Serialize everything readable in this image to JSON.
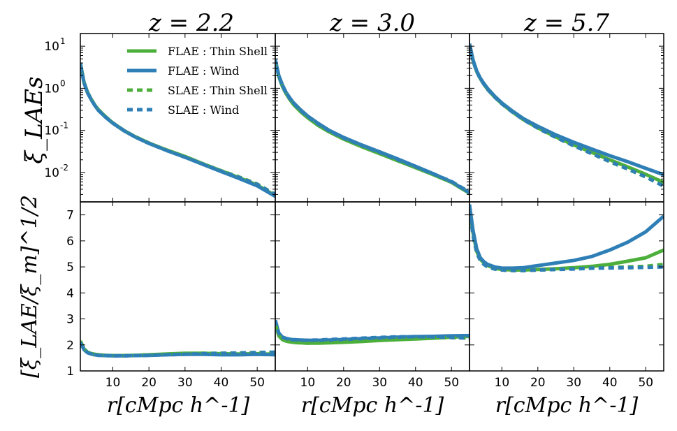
{
  "figure": {
    "panel_titles": [
      "z = 2.2",
      "z = 3.0",
      "z = 5.7"
    ],
    "top_ylabel": "ξ_LAEs",
    "bottom_ylabel": "[ξ_LAE/ξ_m]^1/2",
    "xlabel": "r[cMpc h^-1]",
    "legend": [
      {
        "label": "FLAE : Thin Shell",
        "color": "#4daf3b",
        "style": "solid"
      },
      {
        "label": "FLAE : Wind",
        "color": "#2f7fb7",
        "style": "solid"
      },
      {
        "label": "SLAE : Thin Shell",
        "color": "#4daf3b",
        "style": "dashed"
      },
      {
        "label": "SLAE : Wind",
        "color": "#2f7fb7",
        "style": "dashed"
      }
    ],
    "colors": {
      "thin_shell": "#4daf3b",
      "wind": "#2f7fb7",
      "axis": "#000000"
    }
  },
  "chart_data": [
    {
      "type": "line",
      "title": "z = 2.2",
      "xlabel": "r[cMpc h^-1]",
      "ylabel": "ξ_LAEs",
      "yscale": "log",
      "xlim": [
        1,
        55
      ],
      "ylim": [
        0.002,
        20
      ],
      "xticks": [
        10,
        20,
        30,
        40,
        50
      ],
      "yticks": [
        0.01,
        0.1,
        1,
        10
      ],
      "ytick_labels": [
        "10^-2",
        "10^-1",
        "10^0",
        "10^1"
      ],
      "x": [
        1,
        2,
        3,
        4,
        5,
        6,
        8,
        10,
        13,
        16,
        20,
        25,
        30,
        35,
        40,
        45,
        50,
        55
      ],
      "series": [
        {
          "name": "FLAE : Thin Shell",
          "values": [
            4.0,
            1.4,
            0.8,
            0.55,
            0.4,
            0.31,
            0.21,
            0.15,
            0.1,
            0.072,
            0.05,
            0.034,
            0.024,
            0.016,
            0.011,
            0.0075,
            0.005,
            0.0028
          ]
        },
        {
          "name": "FLAE : Wind",
          "values": [
            3.8,
            1.35,
            0.78,
            0.54,
            0.39,
            0.3,
            0.205,
            0.148,
            0.099,
            0.071,
            0.049,
            0.033,
            0.023,
            0.0155,
            0.0105,
            0.0072,
            0.0048,
            0.0027
          ]
        },
        {
          "name": "SLAE : Thin Shell",
          "values": [
            4.0,
            1.4,
            0.8,
            0.55,
            0.4,
            0.31,
            0.21,
            0.15,
            0.1,
            0.072,
            0.05,
            0.034,
            0.0235,
            0.016,
            0.011,
            0.0078,
            0.0053,
            0.003
          ]
        },
        {
          "name": "SLAE : Wind",
          "values": [
            3.9,
            1.38,
            0.79,
            0.54,
            0.39,
            0.3,
            0.206,
            0.149,
            0.1,
            0.071,
            0.049,
            0.033,
            0.023,
            0.0157,
            0.0108,
            0.0076,
            0.0052,
            0.003
          ]
        }
      ]
    },
    {
      "type": "line",
      "title": "z = 3.0",
      "xlabel": "r[cMpc h^-1]",
      "ylabel": "",
      "yscale": "log",
      "xlim": [
        1,
        55
      ],
      "ylim": [
        0.002,
        20
      ],
      "xticks": [
        10,
        20,
        30,
        40,
        50
      ],
      "x": [
        1,
        2,
        3,
        4,
        5,
        6,
        8,
        10,
        13,
        16,
        20,
        25,
        30,
        35,
        40,
        45,
        50,
        55
      ],
      "series": [
        {
          "name": "FLAE : Thin Shell",
          "values": [
            4.5,
            1.9,
            1.1,
            0.75,
            0.55,
            0.42,
            0.28,
            0.2,
            0.13,
            0.092,
            0.062,
            0.041,
            0.028,
            0.019,
            0.013,
            0.0088,
            0.0058,
            0.0032
          ]
        },
        {
          "name": "FLAE : Wind",
          "values": [
            4.8,
            2.0,
            1.2,
            0.8,
            0.6,
            0.46,
            0.31,
            0.22,
            0.145,
            0.1,
            0.068,
            0.045,
            0.031,
            0.021,
            0.014,
            0.0093,
            0.006,
            0.0033
          ]
        },
        {
          "name": "SLAE : Thin Shell",
          "values": [
            4.5,
            1.9,
            1.1,
            0.76,
            0.56,
            0.43,
            0.285,
            0.205,
            0.133,
            0.094,
            0.063,
            0.042,
            0.029,
            0.0195,
            0.0133,
            0.009,
            0.006,
            0.0034
          ]
        },
        {
          "name": "SLAE : Wind",
          "values": [
            4.7,
            1.95,
            1.15,
            0.78,
            0.58,
            0.45,
            0.3,
            0.215,
            0.14,
            0.098,
            0.066,
            0.044,
            0.03,
            0.0202,
            0.0137,
            0.0092,
            0.0061,
            0.0034
          ]
        }
      ]
    },
    {
      "type": "line",
      "title": "z = 5.7",
      "xlabel": "r[cMpc h^-1]",
      "ylabel": "",
      "yscale": "log",
      "xlim": [
        1,
        55
      ],
      "ylim": [
        0.002,
        20
      ],
      "xticks": [
        10,
        20,
        30,
        40,
        50
      ],
      "x": [
        1,
        2,
        3,
        4,
        5,
        6,
        8,
        10,
        13,
        16,
        20,
        25,
        30,
        35,
        40,
        45,
        50,
        55
      ],
      "series": [
        {
          "name": "FLAE : Thin Shell",
          "values": [
            11,
            4.5,
            2.5,
            1.7,
            1.25,
            0.95,
            0.62,
            0.43,
            0.27,
            0.18,
            0.115,
            0.07,
            0.045,
            0.03,
            0.02,
            0.0135,
            0.009,
            0.0058
          ]
        },
        {
          "name": "FLAE : Wind",
          "values": [
            11.5,
            4.7,
            2.6,
            1.75,
            1.3,
            1.0,
            0.65,
            0.45,
            0.285,
            0.19,
            0.125,
            0.078,
            0.052,
            0.036,
            0.025,
            0.018,
            0.0125,
            0.0088
          ]
        },
        {
          "name": "SLAE : Thin Shell",
          "values": [
            11,
            4.5,
            2.5,
            1.7,
            1.25,
            0.95,
            0.62,
            0.43,
            0.27,
            0.18,
            0.113,
            0.068,
            0.043,
            0.028,
            0.018,
            0.012,
            0.0078,
            0.0048
          ]
        },
        {
          "name": "SLAE : Wind",
          "values": [
            11,
            4.5,
            2.5,
            1.7,
            1.25,
            0.95,
            0.62,
            0.43,
            0.27,
            0.18,
            0.113,
            0.068,
            0.043,
            0.028,
            0.0182,
            0.0121,
            0.0079,
            0.0047
          ]
        }
      ]
    },
    {
      "type": "line",
      "title": "z = 2.2",
      "xlabel": "r[cMpc h^-1]",
      "ylabel": "[ξ_LAE/ξ_m]^1/2",
      "yscale": "linear",
      "xlim": [
        1,
        55
      ],
      "ylim": [
        1,
        7.5
      ],
      "xticks": [
        10,
        20,
        30,
        40,
        50
      ],
      "yticks": [
        1,
        2,
        3,
        4,
        5,
        6,
        7
      ],
      "x": [
        1,
        2,
        3,
        4,
        5,
        6,
        8,
        10,
        13,
        16,
        20,
        25,
        30,
        35,
        40,
        45,
        50,
        55
      ],
      "series": [
        {
          "name": "FLAE : Thin Shell",
          "values": [
            2.15,
            1.85,
            1.72,
            1.67,
            1.64,
            1.62,
            1.6,
            1.59,
            1.59,
            1.6,
            1.62,
            1.65,
            1.68,
            1.68,
            1.66,
            1.65,
            1.66,
            1.64
          ]
        },
        {
          "name": "FLAE : Wind",
          "values": [
            2.1,
            1.82,
            1.7,
            1.65,
            1.62,
            1.6,
            1.59,
            1.58,
            1.58,
            1.59,
            1.6,
            1.62,
            1.64,
            1.64,
            1.62,
            1.62,
            1.64,
            1.62
          ]
        },
        {
          "name": "SLAE : Thin Shell",
          "values": [
            2.15,
            1.85,
            1.72,
            1.67,
            1.64,
            1.62,
            1.6,
            1.59,
            1.59,
            1.6,
            1.62,
            1.64,
            1.67,
            1.68,
            1.68,
            1.69,
            1.71,
            1.72
          ]
        },
        {
          "name": "SLAE : Wind",
          "values": [
            2.1,
            1.82,
            1.7,
            1.65,
            1.62,
            1.6,
            1.59,
            1.58,
            1.58,
            1.59,
            1.6,
            1.62,
            1.64,
            1.66,
            1.68,
            1.69,
            1.7,
            1.72
          ]
        }
      ]
    },
    {
      "type": "line",
      "title": "z = 3.0",
      "xlabel": "r[cMpc h^-1]",
      "ylabel": "",
      "yscale": "linear",
      "xlim": [
        1,
        55
      ],
      "ylim": [
        1,
        7.5
      ],
      "xticks": [
        10,
        20,
        30,
        40,
        50
      ],
      "x": [
        1,
        2,
        3,
        4,
        5,
        6,
        8,
        10,
        13,
        16,
        20,
        25,
        30,
        35,
        40,
        45,
        50,
        55
      ],
      "series": [
        {
          "name": "FLAE : Thin Shell",
          "values": [
            2.8,
            2.35,
            2.2,
            2.15,
            2.12,
            2.1,
            2.08,
            2.07,
            2.07,
            2.08,
            2.1,
            2.13,
            2.17,
            2.2,
            2.23,
            2.26,
            2.3,
            2.33
          ]
        },
        {
          "name": "FLAE : Wind",
          "values": [
            2.95,
            2.45,
            2.3,
            2.25,
            2.22,
            2.2,
            2.19,
            2.18,
            2.18,
            2.19,
            2.21,
            2.24,
            2.27,
            2.3,
            2.32,
            2.33,
            2.35,
            2.36
          ]
        },
        {
          "name": "SLAE : Thin Shell",
          "values": [
            2.8,
            2.35,
            2.2,
            2.15,
            2.12,
            2.1,
            2.08,
            2.07,
            2.08,
            2.1,
            2.12,
            2.15,
            2.19,
            2.22,
            2.25,
            2.27,
            2.28,
            2.26
          ]
        },
        {
          "name": "SLAE : Wind",
          "values": [
            2.95,
            2.45,
            2.3,
            2.25,
            2.22,
            2.2,
            2.19,
            2.18,
            2.19,
            2.21,
            2.23,
            2.26,
            2.29,
            2.31,
            2.32,
            2.31,
            2.29,
            2.26
          ]
        }
      ]
    },
    {
      "type": "line",
      "title": "z = 5.7",
      "xlabel": "r[cMpc h^-1]",
      "ylabel": "",
      "yscale": "linear",
      "xlim": [
        1,
        55
      ],
      "ylim": [
        1,
        7.5
      ],
      "xticks": [
        10,
        20,
        30,
        40,
        50
      ],
      "x": [
        1,
        2,
        3,
        4,
        5,
        6,
        8,
        10,
        13,
        16,
        20,
        25,
        30,
        35,
        40,
        45,
        50,
        55
      ],
      "series": [
        {
          "name": "FLAE : Thin Shell",
          "values": [
            7.3,
            6.3,
            5.6,
            5.3,
            5.15,
            5.05,
            4.95,
            4.9,
            4.88,
            4.88,
            4.9,
            4.93,
            4.97,
            5.02,
            5.1,
            5.22,
            5.35,
            5.65
          ]
        },
        {
          "name": "FLAE : Wind",
          "values": [
            7.4,
            6.4,
            5.7,
            5.35,
            5.2,
            5.1,
            5.0,
            4.95,
            4.95,
            4.97,
            5.05,
            5.15,
            5.25,
            5.4,
            5.65,
            5.95,
            6.35,
            6.95
          ]
        },
        {
          "name": "SLAE : Thin Shell",
          "values": [
            7.3,
            6.2,
            5.55,
            5.25,
            5.1,
            5.0,
            4.92,
            4.88,
            4.86,
            4.86,
            4.88,
            4.9,
            4.93,
            4.96,
            4.98,
            5.0,
            5.02,
            5.1
          ]
        },
        {
          "name": "SLAE : Wind",
          "values": [
            7.3,
            6.2,
            5.55,
            5.25,
            5.1,
            5.0,
            4.92,
            4.88,
            4.86,
            4.86,
            4.88,
            4.9,
            4.92,
            4.95,
            4.96,
            4.97,
            4.98,
            5.0
          ]
        }
      ]
    }
  ]
}
